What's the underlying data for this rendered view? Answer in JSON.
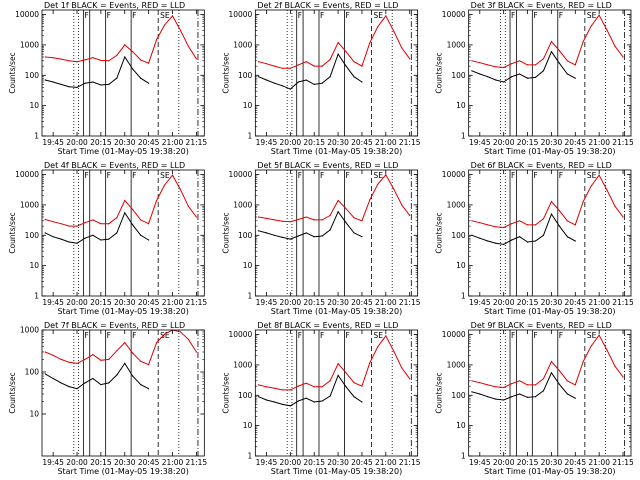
{
  "colors": {
    "events": "#000000",
    "lld": "#e00000",
    "frame": "#000000",
    "background": "#ffffff"
  },
  "chart_data": [
    {
      "type": "line",
      "yscale": "log",
      "title": "Det 1f BLACK = Events, RED = LLD",
      "xlabel": "Start Time (01-May-05 19:38:20)",
      "ylabel": "Counts/sec",
      "xticks": [
        "19:45",
        "20:00",
        "20:15",
        "20:30",
        "20:45",
        "21:00",
        "21:15"
      ],
      "yticks": [
        "1",
        "10",
        "100",
        "1000",
        "10000"
      ],
      "flag_labels": [
        "SE"
      ],
      "x": [
        "19:40",
        "19:45",
        "19:50",
        "19:55",
        "20:00",
        "20:05",
        "20:10",
        "20:15",
        "20:20",
        "20:25",
        "20:30",
        "20:35",
        "20:40",
        "20:45",
        "20:50",
        "20:55",
        "21:00",
        "21:05",
        "21:10",
        "21:15"
      ],
      "series": [
        {
          "name": "Events",
          "values": [
            70,
            60,
            50,
            42,
            40,
            55,
            60,
            48,
            50,
            80,
            400,
            160,
            80,
            55,
            null,
            null,
            null,
            null,
            null,
            null
          ]
        },
        {
          "name": "LLD",
          "values": [
            400,
            380,
            340,
            300,
            280,
            320,
            380,
            310,
            300,
            450,
            1000,
            600,
            320,
            250,
            1500,
            4500,
            9000,
            3000,
            900,
            350
          ]
        }
      ]
    },
    {
      "type": "line",
      "yscale": "log",
      "title": "Det 2f BLACK = Events, RED = LLD",
      "xlabel": "Start Time (01-May-05 19:38:20)",
      "ylabel": "Counts/sec",
      "xticks": [
        "19:45",
        "20:00",
        "20:15",
        "20:30",
        "20:45",
        "21:00",
        "21:15"
      ],
      "yticks": [
        "1",
        "10",
        "100",
        "1000",
        "10000"
      ],
      "flag_labels": [
        "SE"
      ],
      "x": [
        "19:40",
        "19:45",
        "19:50",
        "19:55",
        "20:00",
        "20:05",
        "20:10",
        "20:15",
        "20:20",
        "20:25",
        "20:30",
        "20:35",
        "20:40",
        "20:45",
        "20:50",
        "20:55",
        "21:00",
        "21:05",
        "21:10",
        "21:15"
      ],
      "series": [
        {
          "name": "Events",
          "values": [
            90,
            70,
            55,
            45,
            35,
            60,
            70,
            50,
            55,
            90,
            500,
            200,
            90,
            60,
            null,
            null,
            null,
            null,
            null,
            null
          ]
        },
        {
          "name": "LLD",
          "values": [
            280,
            240,
            200,
            170,
            170,
            220,
            280,
            200,
            200,
            330,
            1200,
            600,
            280,
            200,
            1200,
            4000,
            9000,
            2800,
            800,
            350
          ]
        }
      ]
    },
    {
      "type": "line",
      "yscale": "log",
      "title": "Det 3f BLACK = Events, RED = LLD",
      "xlabel": "Start Time (01-May-05 19:38:20)",
      "ylabel": "Counts/sec",
      "xticks": [
        "19:45",
        "20:00",
        "20:15",
        "20:30",
        "20:45",
        "21:00",
        "21:15"
      ],
      "yticks": [
        "1",
        "10",
        "100",
        "1000",
        "10000"
      ],
      "flag_labels": [
        "SE"
      ],
      "x": [
        "19:40",
        "19:45",
        "19:50",
        "19:55",
        "20:00",
        "20:05",
        "20:10",
        "20:15",
        "20:20",
        "20:25",
        "20:30",
        "20:35",
        "20:40",
        "20:45",
        "20:50",
        "20:55",
        "21:00",
        "21:05",
        "21:10",
        "21:15"
      ],
      "series": [
        {
          "name": "Events",
          "values": [
            140,
            110,
            90,
            70,
            60,
            90,
            110,
            80,
            85,
            140,
            600,
            250,
            110,
            80,
            null,
            null,
            null,
            null,
            null,
            null
          ]
        },
        {
          "name": "LLD",
          "values": [
            300,
            260,
            220,
            190,
            180,
            240,
            300,
            220,
            220,
            350,
            1300,
            650,
            300,
            220,
            1300,
            4200,
            9500,
            3000,
            900,
            400
          ]
        }
      ]
    },
    {
      "type": "line",
      "yscale": "log",
      "title": "Det 4f BLACK = Events, RED = LLD",
      "xlabel": "Start Time (01-May-05 19:38:20)",
      "ylabel": "Counts/sec",
      "xticks": [
        "19:45",
        "20:00",
        "20:15",
        "20:30",
        "20:45",
        "21:00",
        "21:15"
      ],
      "yticks": [
        "1",
        "10",
        "100",
        "1000",
        "10000"
      ],
      "flag_labels": [
        "SE"
      ],
      "x": [
        "19:40",
        "19:45",
        "19:50",
        "19:55",
        "20:00",
        "20:05",
        "20:10",
        "20:15",
        "20:20",
        "20:25",
        "20:30",
        "20:35",
        "20:40",
        "20:45",
        "20:50",
        "20:55",
        "21:00",
        "21:05",
        "21:10",
        "21:15"
      ],
      "series": [
        {
          "name": "Events",
          "values": [
            120,
            90,
            75,
            60,
            55,
            80,
            100,
            70,
            75,
            120,
            550,
            220,
            100,
            70,
            null,
            null,
            null,
            null,
            null,
            null
          ]
        },
        {
          "name": "LLD",
          "values": [
            330,
            280,
            240,
            200,
            200,
            260,
            320,
            240,
            240,
            380,
            1400,
            700,
            320,
            240,
            1400,
            4500,
            9500,
            3200,
            900,
            400
          ]
        }
      ]
    },
    {
      "type": "line",
      "yscale": "log",
      "title": "Det 5f BLACK = Events, RED = LLD",
      "xlabel": "Start Time (01-May-05 19:38:20)",
      "ylabel": "Counts/sec",
      "xticks": [
        "19:45",
        "20:00",
        "20:15",
        "20:30",
        "20:45",
        "21:00",
        "21:15"
      ],
      "yticks": [
        "1",
        "10",
        "100",
        "1000",
        "10000"
      ],
      "flag_labels": [
        "SE"
      ],
      "x": [
        "19:40",
        "19:45",
        "19:50",
        "19:55",
        "20:00",
        "20:05",
        "20:10",
        "20:15",
        "20:20",
        "20:25",
        "20:30",
        "20:35",
        "20:40",
        "20:45",
        "20:50",
        "20:55",
        "21:00",
        "21:05",
        "21:10",
        "21:15"
      ],
      "series": [
        {
          "name": "Events",
          "values": [
            140,
            120,
            100,
            85,
            75,
            95,
            120,
            90,
            95,
            150,
            600,
            260,
            120,
            90,
            null,
            null,
            null,
            null,
            null,
            null
          ]
        },
        {
          "name": "LLD",
          "values": [
            400,
            360,
            320,
            290,
            280,
            330,
            400,
            320,
            320,
            450,
            1400,
            750,
            380,
            300,
            1500,
            4800,
            9800,
            3300,
            1000,
            450
          ]
        }
      ]
    },
    {
      "type": "line",
      "yscale": "log",
      "title": "Det 6f BLACK = Events, RED = LLD",
      "xlabel": "Start Time (01-May-05 19:38:20)",
      "ylabel": "Counts/sec",
      "xticks": [
        "19:45",
        "20:00",
        "20:15",
        "20:30",
        "20:45",
        "21:00",
        "21:15"
      ],
      "yticks": [
        "1",
        "10",
        "100",
        "1000",
        "10000"
      ],
      "flag_labels": [
        "SE"
      ],
      "x": [
        "19:40",
        "19:45",
        "19:50",
        "19:55",
        "20:00",
        "20:05",
        "20:10",
        "20:15",
        "20:20",
        "20:25",
        "20:30",
        "20:35",
        "20:40",
        "20:45",
        "20:50",
        "20:55",
        "21:00",
        "21:05",
        "21:10",
        "21:15"
      ],
      "series": [
        {
          "name": "Events",
          "values": [
            100,
            80,
            65,
            55,
            50,
            70,
            90,
            60,
            65,
            100,
            500,
            200,
            90,
            65,
            null,
            null,
            null,
            null,
            null,
            null
          ]
        },
        {
          "name": "LLD",
          "values": [
            300,
            260,
            220,
            190,
            180,
            240,
            300,
            220,
            220,
            350,
            1300,
            650,
            300,
            220,
            1300,
            4200,
            9500,
            3000,
            900,
            400
          ]
        }
      ]
    },
    {
      "type": "line",
      "yscale": "log",
      "title": "Det 7f BLACK = Events, RED = LLD",
      "xlabel": "Start Time (01-May-05 19:38:20)",
      "ylabel": "Counts/sec",
      "xticks": [
        "19:45",
        "20:00",
        "20:15",
        "20:30",
        "20:45",
        "21:00",
        "21:15"
      ],
      "yticks": [
        "10",
        "100",
        "1000"
      ],
      "ylim": [
        1,
        1000
      ],
      "flag_labels": [
        "SE"
      ],
      "x": [
        "19:40",
        "19:45",
        "19:50",
        "19:55",
        "20:00",
        "20:05",
        "20:10",
        "20:15",
        "20:20",
        "20:25",
        "20:30",
        "20:35",
        "20:40",
        "20:45",
        "20:50",
        "20:55",
        "21:00",
        "21:05",
        "21:10",
        "21:15"
      ],
      "series": [
        {
          "name": "Events",
          "values": [
            90,
            70,
            55,
            45,
            40,
            55,
            70,
            50,
            55,
            85,
            160,
            80,
            50,
            40,
            null,
            null,
            null,
            null,
            null,
            null
          ]
        },
        {
          "name": "LLD",
          "values": [
            300,
            250,
            200,
            170,
            160,
            200,
            260,
            190,
            200,
            320,
            500,
            280,
            180,
            150,
            500,
            800,
            1000,
            900,
            600,
            300
          ]
        }
      ]
    },
    {
      "type": "line",
      "yscale": "log",
      "title": "Det 8f BLACK = Events, RED = LLD",
      "xlabel": "Start Time (01-May-05 19:38:20)",
      "ylabel": "Counts/sec",
      "xticks": [
        "19:45",
        "20:00",
        "20:15",
        "20:30",
        "20:45",
        "21:00",
        "21:15"
      ],
      "yticks": [
        "1",
        "10",
        "100",
        "1000",
        "10000"
      ],
      "flag_labels": [
        "SE"
      ],
      "x": [
        "19:40",
        "19:45",
        "19:50",
        "19:55",
        "20:00",
        "20:05",
        "20:10",
        "20:15",
        "20:20",
        "20:25",
        "20:30",
        "20:35",
        "20:40",
        "20:45",
        "20:50",
        "20:55",
        "21:00",
        "21:05",
        "21:10",
        "21:15"
      ],
      "series": [
        {
          "name": "Events",
          "values": [
            90,
            70,
            60,
            50,
            45,
            65,
            80,
            60,
            65,
            95,
            450,
            190,
            90,
            60,
            null,
            null,
            null,
            null,
            null,
            null
          ]
        },
        {
          "name": "LLD",
          "values": [
            220,
            190,
            170,
            150,
            150,
            200,
            250,
            190,
            190,
            300,
            1100,
            550,
            260,
            200,
            1200,
            4000,
            9000,
            2800,
            800,
            350
          ]
        }
      ]
    },
    {
      "type": "line",
      "yscale": "log",
      "title": "Det 9f BLACK = Events, RED = LLD",
      "xlabel": "Start Time (01-May-05 19:38:20)",
      "ylabel": "Counts/sec",
      "xticks": [
        "19:45",
        "20:00",
        "20:15",
        "20:30",
        "20:45",
        "21:00",
        "21:15"
      ],
      "yticks": [
        "1",
        "10",
        "100",
        "1000",
        "10000"
      ],
      "flag_labels": [
        "SE"
      ],
      "x": [
        "19:40",
        "19:45",
        "19:50",
        "19:55",
        "20:00",
        "20:05",
        "20:10",
        "20:15",
        "20:20",
        "20:25",
        "20:30",
        "20:35",
        "20:40",
        "20:45",
        "20:50",
        "20:55",
        "21:00",
        "21:05",
        "21:10",
        "21:15"
      ],
      "series": [
        {
          "name": "Events",
          "values": [
            130,
            110,
            90,
            75,
            70,
            90,
            110,
            85,
            90,
            140,
            550,
            230,
            110,
            80,
            null,
            null,
            null,
            null,
            null,
            null
          ]
        },
        {
          "name": "LLD",
          "values": [
            300,
            260,
            220,
            190,
            180,
            240,
            300,
            220,
            220,
            350,
            1300,
            650,
            300,
            220,
            1300,
            4200,
            9500,
            3000,
            900,
            400
          ]
        }
      ]
    }
  ]
}
